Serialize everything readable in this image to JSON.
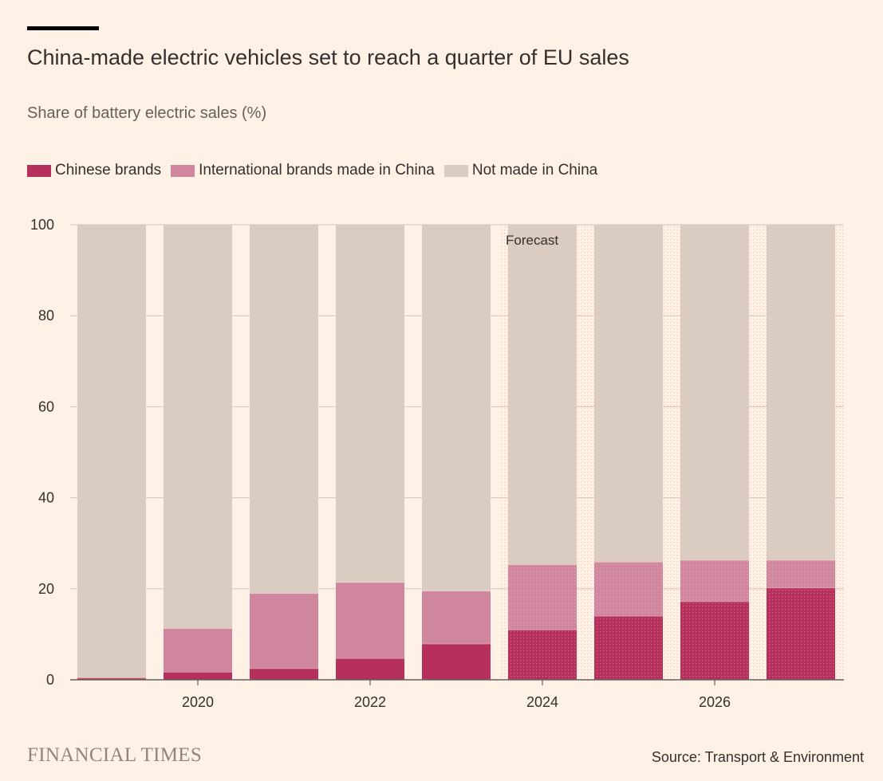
{
  "header": {
    "title": "China-made electric vehicles set to reach a quarter of EU sales",
    "subtitle": "Share of battery electric sales (%)"
  },
  "legend": [
    {
      "label": "Chinese brands",
      "color": "#B5305C"
    },
    {
      "label": "International brands made in China",
      "color": "#D1869F"
    },
    {
      "label": "Not made in China",
      "color": "#DACCC1"
    }
  ],
  "footer": {
    "logo": "FINANCIAL TIMES",
    "source": "Source: Transport & Environment"
  },
  "chart_data": {
    "type": "bar",
    "stacked": true,
    "categories": [
      2019,
      2020,
      2021,
      2022,
      2023,
      2024,
      2025,
      2026,
      2027
    ],
    "x_tick_labels": [
      "2020",
      "2022",
      "2024",
      "2026"
    ],
    "series": [
      {
        "name": "Chinese brands",
        "color": "#B5305C",
        "values": [
          0.4,
          1.7,
          2.5,
          4.7,
          7.9,
          11.0,
          14.0,
          17.2,
          20.2
        ]
      },
      {
        "name": "International brands made in China",
        "color": "#D1869F",
        "values": [
          0.1,
          9.6,
          16.5,
          16.7,
          11.6,
          14.3,
          11.9,
          9.1,
          6.1
        ]
      },
      {
        "name": "Not made in China",
        "color": "#DACCC1",
        "values": [
          99.5,
          88.7,
          81.0,
          78.6,
          80.5,
          74.7,
          74.1,
          73.7,
          73.7
        ]
      }
    ],
    "ylim": [
      0,
      100
    ],
    "y_ticks": [
      0,
      20,
      40,
      60,
      80,
      100
    ],
    "xlabel": "",
    "ylabel": "",
    "grid": true,
    "forecast_from": 2024,
    "forecast_label": "Forecast"
  }
}
